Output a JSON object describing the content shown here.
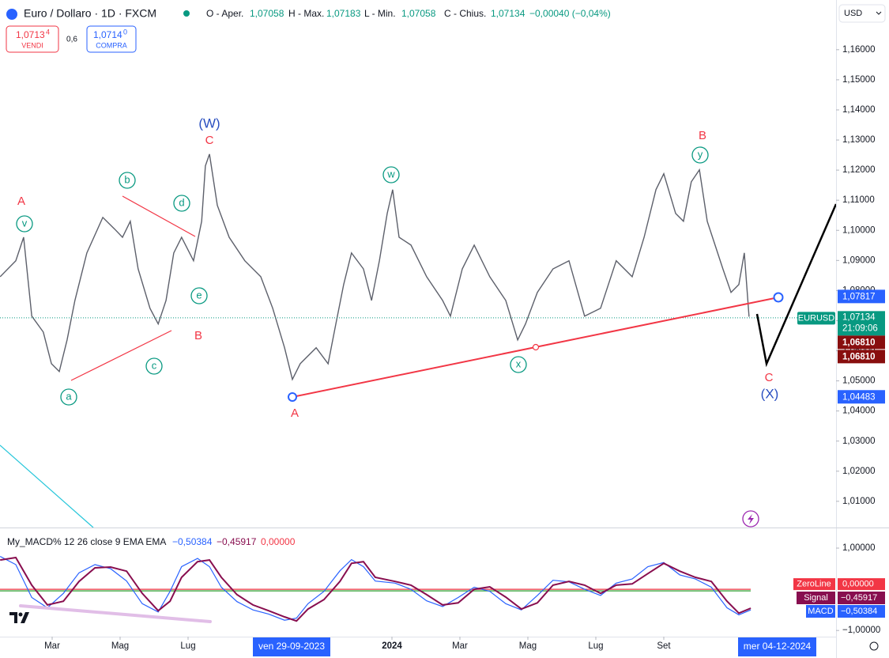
{
  "header": {
    "symbol_title": "Euro / Dollaro · 1D · FXCM",
    "open_label": "O - Aper.",
    "open": "1,07058",
    "high_label": "H - Max.",
    "high": "1,07183",
    "low_label": "L - Min.",
    "low": "1,07058",
    "close_label": "C - Chius.",
    "close": "1,07134",
    "change": "−0,00040 (−0,04%)"
  },
  "trade": {
    "sell_price": "1,0713",
    "sell_pip": "4",
    "sell_label": "VENDI",
    "spread": "0,6",
    "buy_price": "1,0714",
    "buy_pip": "0",
    "buy_label": "COMPRA"
  },
  "currency": "USD",
  "annotations": [
    "A",
    "v",
    "b",
    "d",
    "e",
    "a",
    "c",
    "B",
    "(W)",
    "C",
    "A",
    "w",
    "x",
    "y",
    "B",
    "C",
    "(X)"
  ],
  "chart_data": [
    {
      "type": "line",
      "color": "#5d606b",
      "xlim": [
        0.465,
        25.07
      ],
      "ylim": [
        1.0013,
        1.1765
      ],
      "yticks": [
        {
          "value": 1.01,
          "label": "1,01000"
        },
        {
          "value": 1.02,
          "label": "1,02000"
        },
        {
          "value": 1.03,
          "label": "1,03000"
        },
        {
          "value": 1.04,
          "label": "1,04000"
        },
        {
          "value": 1.05,
          "label": "1,05000"
        },
        {
          "value": 1.06,
          "label": "1,06000"
        },
        {
          "value": 1.07,
          "label": "1,07000"
        },
        {
          "value": 1.08,
          "label": "1,08000"
        },
        {
          "value": 1.09,
          "label": "1,09000"
        },
        {
          "value": 1.1,
          "label": "1,10000"
        },
        {
          "value": 1.11,
          "label": "1,11000"
        },
        {
          "value": 1.12,
          "label": "1,12000"
        },
        {
          "value": 1.13,
          "label": "1,13000"
        },
        {
          "value": 1.14,
          "label": "1,14000"
        },
        {
          "value": 1.15,
          "label": "1,15000"
        },
        {
          "value": 1.16,
          "label": "1,16000"
        }
      ],
      "x": [
        0.47,
        0.93,
        1.16,
        1.4,
        1.74,
        1.98,
        2.21,
        2.44,
        2.67,
        3.02,
        3.49,
        3.84,
        4.07,
        4.3,
        4.53,
        4.88,
        5.12,
        5.35,
        5.58,
        5.81,
        6.16,
        6.4,
        6.51,
        6.63,
        6.86,
        7.21,
        7.67,
        8.14,
        8.49,
        8.84,
        9.07,
        9.3,
        9.77,
        10.12,
        10.35,
        10.58,
        10.81,
        11.16,
        11.4,
        11.63,
        11.86,
        12.02,
        12.21,
        12.56,
        13.02,
        13.49,
        13.72,
        14.07,
        14.42,
        14.88,
        15.35,
        15.7,
        15.93,
        16.28,
        16.74,
        17.21,
        17.67,
        18.14,
        18.6,
        19.07,
        19.42,
        19.77,
        20.0,
        20.35,
        20.58,
        20.81,
        21.05,
        21.28,
        21.51,
        21.74,
        21.98,
        22.21,
        22.37,
        22.51
      ],
      "values": [
        1.0846,
        1.0899,
        1.0977,
        1.0715,
        1.0662,
        1.0557,
        1.0531,
        1.0636,
        1.0767,
        1.0925,
        1.1043,
        1.1004,
        1.0977,
        1.103,
        1.0872,
        1.0741,
        1.0689,
        1.0767,
        1.0925,
        1.0977,
        1.0899,
        1.103,
        1.1214,
        1.1253,
        1.1083,
        1.0977,
        1.0899,
        1.0846,
        1.0741,
        1.061,
        1.0505,
        1.0557,
        1.061,
        1.0557,
        1.0689,
        1.082,
        1.0925,
        1.0872,
        1.0767,
        1.0899,
        1.1056,
        1.1135,
        1.0977,
        1.0951,
        1.0846,
        1.0767,
        1.0715,
        1.0872,
        1.0951,
        1.0846,
        1.0767,
        1.0636,
        1.0689,
        1.0794,
        1.0872,
        1.0899,
        1.0715,
        1.0741,
        1.0899,
        1.0846,
        1.0977,
        1.1135,
        1.1188,
        1.1056,
        1.103,
        1.1161,
        1.1201,
        1.103,
        1.0951,
        1.0872,
        1.0794,
        1.082,
        1.0925,
        1.0713
      ],
      "level_labels": [
        {
          "value": 1.07817,
          "label": "1,07817"
        },
        {
          "value": 1.04483,
          "label": "1,04483"
        }
      ],
      "last_price": {
        "value": 1.07134,
        "label": "1,07134"
      },
      "symbol": "EURUSD",
      "countdown": "21:09:06",
      "bid_ask_labels": [
        "1,06810",
        "1,06810"
      ]
    },
    {
      "type": "line",
      "title": "My_MACD% 12 26 close 9 EMA EMA",
      "xlim": [
        0.465,
        25.07
      ],
      "ylim": [
        -1.15,
        1.5
      ],
      "yticks": [
        {
          "value": 1,
          "label": "1,00000"
        },
        {
          "value": -1,
          "label": "−1,00000"
        }
      ],
      "xticks": [
        {
          "value": 2,
          "label": "Mar"
        },
        {
          "value": 4,
          "label": "Mag"
        },
        {
          "value": 6,
          "label": "Lug"
        },
        {
          "value": 12,
          "label": "2024"
        },
        {
          "value": 14,
          "label": "Mar"
        },
        {
          "value": 16,
          "label": "Mag"
        },
        {
          "value": 18,
          "label": "Lug"
        },
        {
          "value": 20,
          "label": "Set"
        }
      ],
      "x_flags": [
        "ven 29-09-2023",
        "mer 04-12-2024"
      ],
      "x": [
        0.47,
        0.93,
        1.4,
        1.86,
        2.33,
        2.79,
        3.26,
        3.72,
        4.19,
        4.65,
        5.12,
        5.47,
        5.81,
        6.28,
        6.63,
        6.98,
        7.44,
        7.91,
        8.37,
        8.84,
        9.19,
        9.53,
        10.0,
        10.47,
        10.81,
        11.16,
        11.51,
        12.09,
        12.56,
        13.02,
        13.49,
        13.95,
        14.42,
        14.88,
        15.35,
        15.81,
        16.28,
        16.74,
        17.21,
        17.67,
        18.14,
        18.6,
        19.07,
        19.53,
        20.0,
        20.47,
        20.93,
        21.4,
        21.86,
        22.21,
        22.56
      ],
      "series": [
        {
          "name": "MACD",
          "color": "#2962ff",
          "last_label": "−0,50384",
          "values": [
            0.8,
            0.6,
            -0.2,
            -0.45,
            -0.1,
            0.4,
            0.6,
            0.5,
            0.2,
            -0.35,
            -0.55,
            -0.05,
            0.55,
            0.75,
            0.55,
            0.05,
            -0.3,
            -0.5,
            -0.6,
            -0.75,
            -0.7,
            -0.35,
            -0.05,
            0.45,
            0.72,
            0.55,
            0.2,
            0.15,
            0.0,
            -0.28,
            -0.42,
            -0.2,
            0.05,
            -0.05,
            -0.35,
            -0.5,
            -0.15,
            0.22,
            0.18,
            0.0,
            -0.15,
            0.15,
            0.25,
            0.55,
            0.65,
            0.35,
            0.25,
            0.05,
            -0.45,
            -0.62,
            -0.5
          ]
        },
        {
          "name": "Signal",
          "color": "#880e4f",
          "last_label": "−0,45917",
          "values": [
            0.71,
            0.77,
            0.1,
            -0.38,
            -0.29,
            0.19,
            0.52,
            0.54,
            0.44,
            -0.1,
            -0.52,
            -0.29,
            0.29,
            0.67,
            0.71,
            0.29,
            -0.13,
            -0.38,
            -0.52,
            -0.67,
            -0.77,
            -0.48,
            -0.25,
            0.19,
            0.63,
            0.67,
            0.29,
            0.19,
            0.1,
            -0.13,
            -0.38,
            -0.33,
            0.0,
            0.06,
            -0.19,
            -0.48,
            -0.33,
            0.1,
            0.19,
            0.1,
            -0.1,
            0.1,
            0.13,
            0.38,
            0.63,
            0.44,
            0.29,
            0.19,
            -0.29,
            -0.58,
            -0.46
          ]
        }
      ],
      "zero_line": {
        "name": "ZeroLine",
        "value": 0,
        "label": "0,00000"
      }
    }
  ]
}
